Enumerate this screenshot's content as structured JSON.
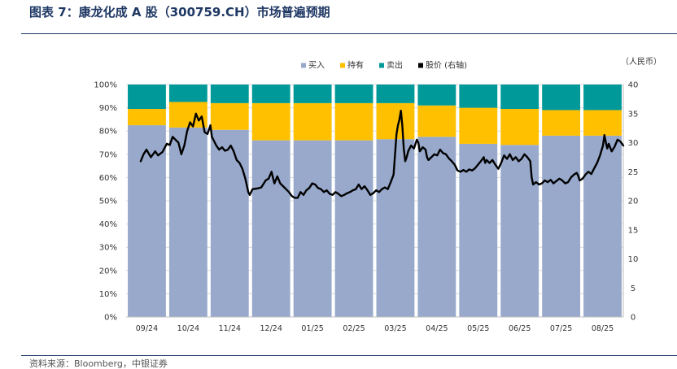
{
  "header": {
    "title": "图表 7：康龙化成 A 股（300759.CH）市场普遍预期"
  },
  "footer": {
    "source": "资料来源：Bloomberg，中银证券"
  },
  "chart_data": {
    "type": "bar",
    "stacked": true,
    "categories": [
      "09/24",
      "10/24",
      "11/24",
      "12/24",
      "01/25",
      "02/25",
      "03/25",
      "04/25",
      "05/25",
      "06/25",
      "07/25",
      "08/25"
    ],
    "series": [
      {
        "name": "买入",
        "color": "#98A9CB",
        "values": [
          82.5,
          81.5,
          80.5,
          76,
          76,
          76,
          76.5,
          77.5,
          74.5,
          74,
          78,
          78
        ]
      },
      {
        "name": "持有",
        "color": "#FFC000",
        "values": [
          7,
          11,
          11.5,
          16,
          16,
          16,
          15.5,
          13.5,
          15.5,
          15.5,
          11,
          11
        ]
      },
      {
        "name": "卖出",
        "color": "#009999",
        "values": [
          10.5,
          7.5,
          8,
          8,
          8,
          8,
          8,
          9,
          10,
          10.5,
          11,
          11
        ]
      }
    ],
    "line": {
      "name": "股价 (右轴)",
      "color": "#000000",
      "axis": "right",
      "points": [
        [
          0.0,
          26.8
        ],
        [
          0.1,
          28.0
        ],
        [
          0.2,
          28.8
        ],
        [
          0.35,
          27.5
        ],
        [
          0.5,
          28.5
        ],
        [
          0.6,
          27.8
        ],
        [
          0.75,
          28.4
        ],
        [
          0.9,
          29.8
        ],
        [
          1.0,
          29.6
        ],
        [
          1.1,
          31.0
        ],
        [
          1.2,
          30.5
        ],
        [
          1.3,
          30.0
        ],
        [
          1.4,
          28.0
        ],
        [
          1.5,
          29.5
        ],
        [
          1.6,
          32.0
        ],
        [
          1.7,
          33.5
        ],
        [
          1.8,
          32.8
        ],
        [
          1.9,
          35.0
        ],
        [
          2.0,
          33.8
        ],
        [
          2.1,
          34.5
        ],
        [
          2.2,
          31.8
        ],
        [
          2.3,
          31.5
        ],
        [
          2.4,
          33.0
        ],
        [
          2.45,
          31.0
        ],
        [
          2.5,
          30.5
        ],
        [
          2.6,
          29.5
        ],
        [
          2.7,
          28.8
        ],
        [
          2.8,
          29.2
        ],
        [
          2.9,
          28.6
        ],
        [
          3.0,
          28.8
        ],
        [
          3.1,
          29.5
        ],
        [
          3.2,
          28.5
        ],
        [
          3.3,
          27.0
        ],
        [
          3.4,
          26.5
        ],
        [
          3.5,
          25.5
        ],
        [
          3.6,
          23.8
        ],
        [
          3.7,
          21.5
        ],
        [
          3.75,
          21.0
        ],
        [
          3.85,
          22.0
        ],
        [
          4.0,
          22.1
        ],
        [
          4.15,
          22.3
        ],
        [
          4.3,
          23.5
        ],
        [
          4.4,
          23.8
        ],
        [
          4.5,
          25.0
        ],
        [
          4.55,
          24.0
        ],
        [
          4.6,
          23.0
        ],
        [
          4.7,
          24.2
        ],
        [
          4.8,
          23.0
        ],
        [
          4.9,
          22.5
        ],
        [
          5.0,
          22.0
        ],
        [
          5.1,
          21.5
        ],
        [
          5.2,
          20.8
        ],
        [
          5.3,
          20.5
        ],
        [
          5.4,
          20.5
        ],
        [
          5.5,
          21.5
        ],
        [
          5.6,
          21.0
        ],
        [
          5.7,
          21.8
        ],
        [
          5.8,
          22.2
        ],
        [
          5.9,
          23.0
        ],
        [
          6.0,
          22.8
        ],
        [
          6.1,
          22.2
        ],
        [
          6.2,
          22.0
        ],
        [
          6.3,
          21.5
        ],
        [
          6.4,
          21.8
        ],
        [
          6.5,
          21.2
        ],
        [
          6.6,
          21.0
        ],
        [
          6.7,
          21.5
        ],
        [
          6.8,
          21.2
        ],
        [
          6.9,
          20.8
        ],
        [
          7.0,
          21.0
        ],
        [
          7.1,
          21.3
        ],
        [
          7.2,
          21.5
        ],
        [
          7.3,
          21.8
        ],
        [
          7.4,
          22.0
        ],
        [
          7.5,
          22.8
        ],
        [
          7.6,
          22.0
        ],
        [
          7.7,
          22.5
        ],
        [
          7.8,
          21.8
        ],
        [
          7.9,
          21.0
        ],
        [
          8.0,
          21.3
        ],
        [
          8.1,
          21.8
        ],
        [
          8.2,
          21.5
        ],
        [
          8.3,
          22.0
        ],
        [
          8.4,
          22.3
        ],
        [
          8.5,
          22.0
        ],
        [
          8.6,
          23.2
        ],
        [
          8.7,
          24.5
        ],
        [
          8.75,
          28.0
        ],
        [
          8.8,
          31.5
        ],
        [
          8.85,
          33.0
        ],
        [
          8.9,
          34.0
        ],
        [
          8.95,
          35.5
        ],
        [
          9.0,
          33.0
        ],
        [
          9.05,
          29.0
        ],
        [
          9.1,
          26.8
        ],
        [
          9.15,
          27.5
        ],
        [
          9.2,
          28.5
        ],
        [
          9.3,
          29.5
        ],
        [
          9.4,
          29.0
        ],
        [
          9.5,
          30.5
        ],
        [
          9.55,
          30.0
        ],
        [
          9.6,
          28.5
        ],
        [
          9.7,
          29.2
        ],
        [
          9.8,
          28.8
        ],
        [
          9.85,
          27.5
        ],
        [
          9.9,
          27.0
        ],
        [
          10.0,
          27.5
        ],
        [
          10.1,
          28.0
        ],
        [
          10.2,
          27.8
        ],
        [
          10.3,
          28.8
        ],
        [
          10.4,
          28.2
        ],
        [
          10.5,
          28.0
        ],
        [
          10.6,
          27.3
        ],
        [
          10.7,
          26.8
        ],
        [
          10.8,
          26.2
        ],
        [
          10.9,
          25.2
        ],
        [
          11.0,
          25.0
        ],
        [
          11.1,
          25.3
        ],
        [
          11.2,
          25.0
        ],
        [
          11.3,
          25.4
        ],
        [
          11.4,
          25.2
        ],
        [
          11.5,
          25.6
        ],
        [
          11.6,
          26.2
        ],
        [
          11.7,
          26.8
        ],
        [
          11.8,
          27.5
        ],
        [
          11.85,
          26.5
        ],
        [
          11.9,
          27.0
        ],
        [
          12.0,
          26.5
        ],
        [
          12.1,
          27.0
        ],
        [
          12.2,
          26.2
        ],
        [
          12.3,
          25.5
        ],
        [
          12.4,
          26.5
        ],
        [
          12.5,
          27.8
        ],
        [
          12.6,
          27.2
        ],
        [
          12.7,
          28.0
        ],
        [
          12.8,
          27.0
        ],
        [
          12.9,
          27.5
        ],
        [
          13.0,
          26.8
        ],
        [
          13.1,
          27.2
        ],
        [
          13.2,
          28.0
        ],
        [
          13.3,
          27.5
        ],
        [
          13.4,
          26.8
        ],
        [
          13.45,
          24.0
        ],
        [
          13.5,
          22.8
        ],
        [
          13.55,
          23.0
        ],
        [
          13.6,
          23.2
        ],
        [
          13.7,
          22.8
        ],
        [
          13.8,
          23.0
        ],
        [
          13.9,
          23.5
        ],
        [
          14.0,
          23.2
        ],
        [
          14.1,
          23.6
        ],
        [
          14.2,
          23.0
        ],
        [
          14.3,
          23.4
        ],
        [
          14.4,
          23.8
        ],
        [
          14.5,
          23.5
        ],
        [
          14.6,
          23.0
        ],
        [
          14.7,
          23.2
        ],
        [
          14.8,
          24.0
        ],
        [
          14.9,
          24.5
        ],
        [
          15.0,
          24.8
        ],
        [
          15.05,
          24.3
        ],
        [
          15.1,
          23.5
        ],
        [
          15.2,
          23.8
        ],
        [
          15.3,
          24.5
        ],
        [
          15.4,
          25.0
        ],
        [
          15.5,
          24.6
        ],
        [
          15.6,
          25.6
        ],
        [
          15.7,
          26.5
        ],
        [
          15.8,
          27.8
        ],
        [
          15.9,
          29.5
        ],
        [
          15.95,
          31.3
        ],
        [
          16.0,
          30.0
        ],
        [
          16.05,
          29.0
        ],
        [
          16.1,
          29.8
        ],
        [
          16.2,
          28.5
        ],
        [
          16.3,
          29.3
        ],
        [
          16.4,
          30.5
        ],
        [
          16.5,
          30.2
        ],
        [
          16.6,
          29.5
        ]
      ],
      "x_domain": [
        -0.5,
        16.6
      ]
    },
    "y_left": {
      "min": 0,
      "max": 100,
      "ticks": [
        "0%",
        "10%",
        "20%",
        "30%",
        "40%",
        "50%",
        "60%",
        "70%",
        "80%",
        "90%",
        "100%"
      ]
    },
    "y_right": {
      "min": 0,
      "max": 40,
      "ticks": [
        "0",
        "5",
        "10",
        "15",
        "20",
        "25",
        "30",
        "35",
        "40"
      ],
      "unit_label": "（人民币）"
    },
    "legend": {
      "placement": "top",
      "items": [
        "买入",
        "持有",
        "卖出",
        "股价 (右轴)"
      ]
    }
  }
}
